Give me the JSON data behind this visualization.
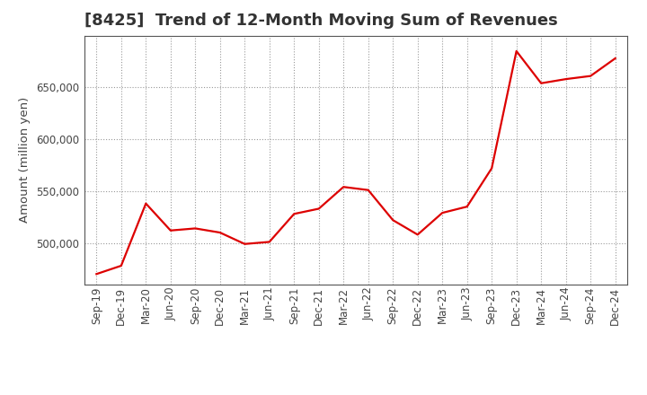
{
  "title": "[8425]  Trend of 12-Month Moving Sum of Revenues",
  "ylabel": "Amount (million yen)",
  "line_color": "#dd0000",
  "background_color": "#ffffff",
  "plot_bg_color": "#ffffff",
  "grid_color": "#999999",
  "x_labels": [
    "Sep-19",
    "Dec-19",
    "Mar-20",
    "Jun-20",
    "Sep-20",
    "Dec-20",
    "Mar-21",
    "Jun-21",
    "Sep-21",
    "Dec-21",
    "Mar-22",
    "Jun-22",
    "Sep-22",
    "Dec-22",
    "Mar-23",
    "Jun-23",
    "Sep-23",
    "Dec-23",
    "Mar-24",
    "Jun-24",
    "Sep-24",
    "Dec-24"
  ],
  "values": [
    470000,
    478000,
    538000,
    512000,
    514000,
    510000,
    499000,
    501000,
    528000,
    533000,
    554000,
    551000,
    522000,
    508000,
    529000,
    535000,
    572000,
    685000,
    654000,
    658000,
    661000,
    678000
  ],
  "ylim": [
    460000,
    700000
  ],
  "yticks": [
    500000,
    550000,
    600000,
    650000
  ],
  "title_fontsize": 13,
  "label_fontsize": 9.5,
  "tick_fontsize": 8.5,
  "title_color": "#333333",
  "axis_color": "#444444"
}
